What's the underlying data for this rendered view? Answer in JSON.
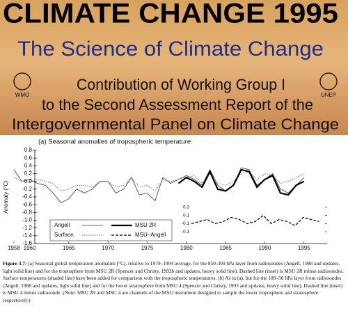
{
  "header": {
    "title": "CLIMATE CHANGE 1995",
    "subtitle": "The Science of Climate Change",
    "lines": [
      "Contribution of Working Group I",
      "to the Second Assessment Report of the",
      "Intergovernmental Panel on Climate Change"
    ],
    "logos": [
      "WMO",
      "UNEP"
    ]
  },
  "chart_data": [
    {
      "type": "line",
      "title": "(a) Seasonal anomalies of tropospheric temperature",
      "ylabel": "Anomaly (°C)",
      "xlim": [
        1958,
        1996
      ],
      "xticks": [
        1958,
        1960,
        1965,
        1970,
        1975,
        1980,
        1985,
        1990,
        1995
      ],
      "ylim": [
        -1.6,
        0.8
      ],
      "yticks": [
        0.8,
        0.6,
        0.4,
        0.2,
        {
          "value": 0,
          "label": "0.0"
        },
        -0.2,
        -0.4,
        -0.6,
        -0.8,
        {
          "value": -1,
          "label": "-1.0"
        },
        -1.2,
        -1.4,
        -1.6
      ],
      "series": [
        {
          "name": "Angell",
          "color": "#333333",
          "style": "solid",
          "width": 0.8,
          "x": [
            1958,
            1959,
            1960,
            1961,
            1962,
            1963,
            1964,
            1965,
            1966,
            1967,
            1968,
            1969,
            1970,
            1971,
            1972,
            1973,
            1974,
            1975,
            1976,
            1977,
            1978,
            1979,
            1980,
            1981,
            1982,
            1983,
            1984,
            1985,
            1986,
            1987,
            1988,
            1989,
            1990,
            1991,
            1992,
            1993,
            1994,
            1995
          ],
          "values": [
            0.3,
            0.0,
            0.05,
            -0.05,
            -0.1,
            -0.3,
            -0.55,
            -0.45,
            -0.2,
            -0.3,
            -0.2,
            0.0,
            0.0,
            -0.3,
            -0.2,
            0.1,
            -0.35,
            -0.3,
            -0.5,
            0.1,
            -0.05,
            0.05,
            0.15,
            0.05,
            -0.1,
            0.3,
            -0.1,
            -0.25,
            -0.1,
            0.35,
            0.3,
            -0.1,
            0.05,
            0.2,
            -0.2,
            -0.3,
            -0.1,
            0.1
          ]
        },
        {
          "name": "Surface",
          "color": "#888888",
          "style": "dotted",
          "width": 1.2,
          "x": [
            1958,
            1959,
            1960,
            1961,
            1962,
            1963,
            1964,
            1965,
            1966,
            1967,
            1968,
            1969,
            1970,
            1971,
            1972,
            1973,
            1974,
            1975,
            1976,
            1977,
            1978,
            1979,
            1980,
            1981,
            1982,
            1983,
            1984,
            1985,
            1986,
            1987,
            1988,
            1989,
            1990,
            1991,
            1992,
            1993,
            1994,
            1995
          ],
          "values": [
            0.1,
            0.0,
            0.0,
            0.05,
            0.0,
            -0.05,
            -0.25,
            -0.2,
            -0.1,
            -0.1,
            -0.15,
            0.0,
            0.0,
            -0.15,
            -0.1,
            0.1,
            -0.15,
            -0.1,
            -0.25,
            0.05,
            0.0,
            0.05,
            0.1,
            0.15,
            -0.05,
            0.2,
            -0.05,
            -0.1,
            0.0,
            0.2,
            0.25,
            0.05,
            0.2,
            0.15,
            -0.05,
            0.0,
            0.1,
            0.2
          ]
        },
        {
          "name": "MSU 2R",
          "color": "#000000",
          "style": "solid",
          "width": 2.2,
          "x": [
            1979,
            1980,
            1981,
            1982,
            1983,
            1984,
            1985,
            1986,
            1987,
            1988,
            1989,
            1990,
            1991,
            1992,
            1993,
            1994,
            1995
          ],
          "values": [
            -0.05,
            0.1,
            0.0,
            -0.15,
            0.25,
            -0.2,
            -0.25,
            -0.1,
            0.3,
            0.25,
            -0.15,
            0.05,
            0.15,
            -0.3,
            -0.35,
            -0.1,
            0.0
          ]
        }
      ]
    },
    {
      "type": "line",
      "xlim": [
        1979,
        1996
      ],
      "ylim": [
        -0.4,
        0.4
      ],
      "yticks": [
        0.3,
        0.1,
        -0.1,
        -0.3
      ],
      "series": [
        {
          "name": "MSU–Angell",
          "color": "#000000",
          "style": "dashed",
          "width": 1.2,
          "x": [
            1979,
            1980,
            1981,
            1982,
            1983,
            1984,
            1985,
            1986,
            1987,
            1988,
            1989,
            1990,
            1991,
            1992,
            1993,
            1994,
            1995
          ],
          "values": [
            -0.1,
            -0.05,
            0.0,
            -0.1,
            -0.05,
            0.05,
            0.0,
            -0.1,
            -0.05,
            0.1,
            -0.1,
            0.0,
            -0.05,
            -0.15,
            0.05,
            0.0,
            -0.05
          ]
        }
      ]
    }
  ],
  "caption": {
    "label": "Figure 3.7:",
    "text": "(a) Seasonal global temperature anomalies (°C), relative to 1979–1994 average, for the 850-300 hPa layer from radiosondes (Angell, 1988 and updates, light solid line) and for the troposphere from MSU 2R (Spencer and Christy, 1992b and updates, heavy solid line). Dashed line (inset) is MSU 2R minus radiosondes. Surface temperatures (shaded line) have been added for comparison with the tropospheric temperatures. (b) As in (a), but for the 100–50 hPa layer from radiosondes (Angell, 1988 and updates, light solid line) and for the lower stratosphere from MSU 4 (Spencer and Christy, 1993 and updates, heavy solid line). Dashed line (inset) is MSU 4 minus radiosonde. (Note: MSU 2R and MSU 4 are channels of the MSU instrument designed to sample the lower troposphere and stratosphere respectively.)"
  }
}
